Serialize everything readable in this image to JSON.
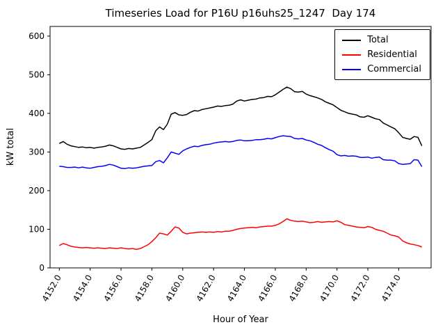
{
  "chart_data": {
    "type": "line",
    "title": "Timeseries Load for P16U p16uhs25_1247  Day 174",
    "xlabel": "Hour of Year",
    "ylabel": "kW total",
    "xlim": [
      4151.4,
      4176.1
    ],
    "ylim": [
      0,
      625
    ],
    "grid": false,
    "legend_position": "upper right",
    "x_start": 4152.0,
    "x_step": 0.25,
    "xtick_values": [
      4152,
      4154,
      4156,
      4158,
      4160,
      4162,
      4164,
      4166,
      4168,
      4170,
      4172,
      4174
    ],
    "xtick_labels": [
      "4152.0",
      "4154.0",
      "4156.0",
      "4158.0",
      "4160.0",
      "4162.0",
      "4164.0",
      "4166.0",
      "4168.0",
      "4170.0",
      "4172.0",
      "4174.0"
    ],
    "ytick_values": [
      0,
      100,
      200,
      300,
      400,
      500,
      600
    ],
    "ytick_labels": [
      "0",
      "100",
      "200",
      "300",
      "400",
      "500",
      "600"
    ],
    "series": [
      {
        "name": "Total",
        "color": "#000000",
        "values": [
          322,
          327,
          320,
          316,
          314,
          312,
          313,
          311,
          312,
          310,
          312,
          313,
          315,
          318,
          316,
          312,
          308,
          307,
          309,
          308,
          310,
          312,
          318,
          325,
          332,
          355,
          365,
          358,
          372,
          398,
          402,
          396,
          395,
          397,
          403,
          407,
          406,
          410,
          412,
          414,
          416,
          419,
          418,
          420,
          421,
          424,
          432,
          435,
          432,
          434,
          436,
          437,
          440,
          441,
          444,
          443,
          448,
          455,
          462,
          468,
          464,
          456,
          455,
          457,
          450,
          446,
          443,
          440,
          436,
          430,
          426,
          422,
          415,
          408,
          404,
          400,
          398,
          396,
          391,
          390,
          394,
          390,
          386,
          384,
          375,
          370,
          365,
          360,
          350,
          338,
          335,
          333,
          340,
          338,
          316
        ]
      },
      {
        "name": "Residential",
        "color": "#ff0000",
        "values": [
          58,
          63,
          60,
          56,
          54,
          53,
          52,
          53,
          52,
          51,
          52,
          51,
          50,
          52,
          51,
          50,
          52,
          50,
          49,
          50,
          48,
          50,
          55,
          60,
          68,
          78,
          90,
          88,
          85,
          95,
          106,
          103,
          92,
          88,
          90,
          91,
          92,
          93,
          92,
          93,
          92,
          94,
          93,
          95,
          95,
          97,
          100,
          102,
          103,
          104,
          105,
          104,
          106,
          107,
          108,
          108,
          110,
          114,
          120,
          127,
          123,
          121,
          120,
          121,
          119,
          117,
          118,
          120,
          118,
          119,
          120,
          119,
          122,
          118,
          112,
          110,
          108,
          106,
          105,
          104,
          107,
          105,
          100,
          97,
          95,
          90,
          85,
          83,
          80,
          70,
          65,
          62,
          60,
          58,
          54
        ]
      },
      {
        "name": "Commercial",
        "color": "#0000ff",
        "values": [
          263,
          262,
          260,
          260,
          261,
          259,
          261,
          259,
          258,
          260,
          262,
          263,
          265,
          268,
          266,
          262,
          258,
          257,
          259,
          258,
          259,
          261,
          263,
          264,
          265,
          275,
          278,
          272,
          285,
          300,
          297,
          294,
          303,
          308,
          312,
          315,
          314,
          317,
          319,
          320,
          323,
          325,
          326,
          327,
          326,
          327,
          330,
          331,
          329,
          329,
          330,
          332,
          332,
          333,
          335,
          334,
          337,
          340,
          342,
          341,
          340,
          335,
          334,
          335,
          331,
          329,
          325,
          320,
          317,
          311,
          306,
          302,
          293,
          290,
          291,
          289,
          290,
          289,
          286,
          286,
          287,
          284,
          286,
          287,
          280,
          279,
          279,
          277,
          270,
          268,
          269,
          270,
          280,
          279,
          262
        ]
      }
    ]
  }
}
